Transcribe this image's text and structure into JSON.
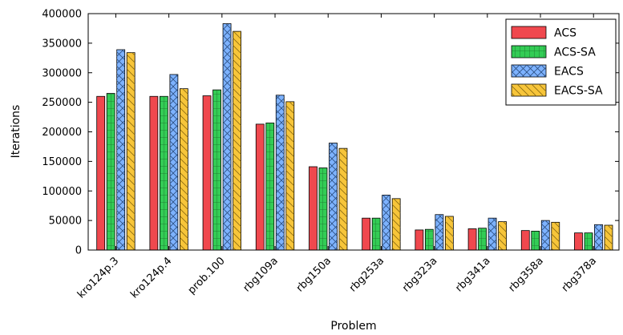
{
  "chart_data": {
    "type": "bar",
    "xlabel": "Problem",
    "ylabel": "Iterations",
    "ylim": [
      0,
      400000
    ],
    "yticks": [
      0,
      50000,
      100000,
      150000,
      200000,
      250000,
      300000,
      350000,
      400000
    ],
    "ytick_labels": [
      "0",
      "50000",
      "100000",
      "150000",
      "200000",
      "250000",
      "300000",
      "350000",
      "400000"
    ],
    "categories": [
      "kro124p.3",
      "kro124p.4",
      "prob.100",
      "rbg109a",
      "rbg150a",
      "rbg253a",
      "rbg323a",
      "rbg341a",
      "rbg358a",
      "rbg378a"
    ],
    "grid": false,
    "legend_position": "top-right",
    "series": [
      {
        "name": "ACS",
        "color": "#f0484e",
        "pattern": "none",
        "values": [
          260000,
          260000,
          261000,
          213000,
          141000,
          54000,
          34000,
          36000,
          33000,
          29000
        ]
      },
      {
        "name": "ACS-SA",
        "color": "#33cc55",
        "pattern": "grid",
        "values": [
          265000,
          260000,
          271000,
          215000,
          139000,
          54000,
          35000,
          37000,
          32000,
          29000
        ]
      },
      {
        "name": "EACS",
        "color": "#7db2ff",
        "pattern": "crosshatch",
        "values": [
          339000,
          297000,
          383000,
          262000,
          181000,
          93000,
          60000,
          54000,
          50000,
          43000
        ]
      },
      {
        "name": "EACS-SA",
        "color": "#f7c53a",
        "pattern": "diagonal",
        "values": [
          334000,
          273000,
          370000,
          251000,
          172000,
          87000,
          57000,
          48000,
          47000,
          42000
        ]
      }
    ]
  }
}
